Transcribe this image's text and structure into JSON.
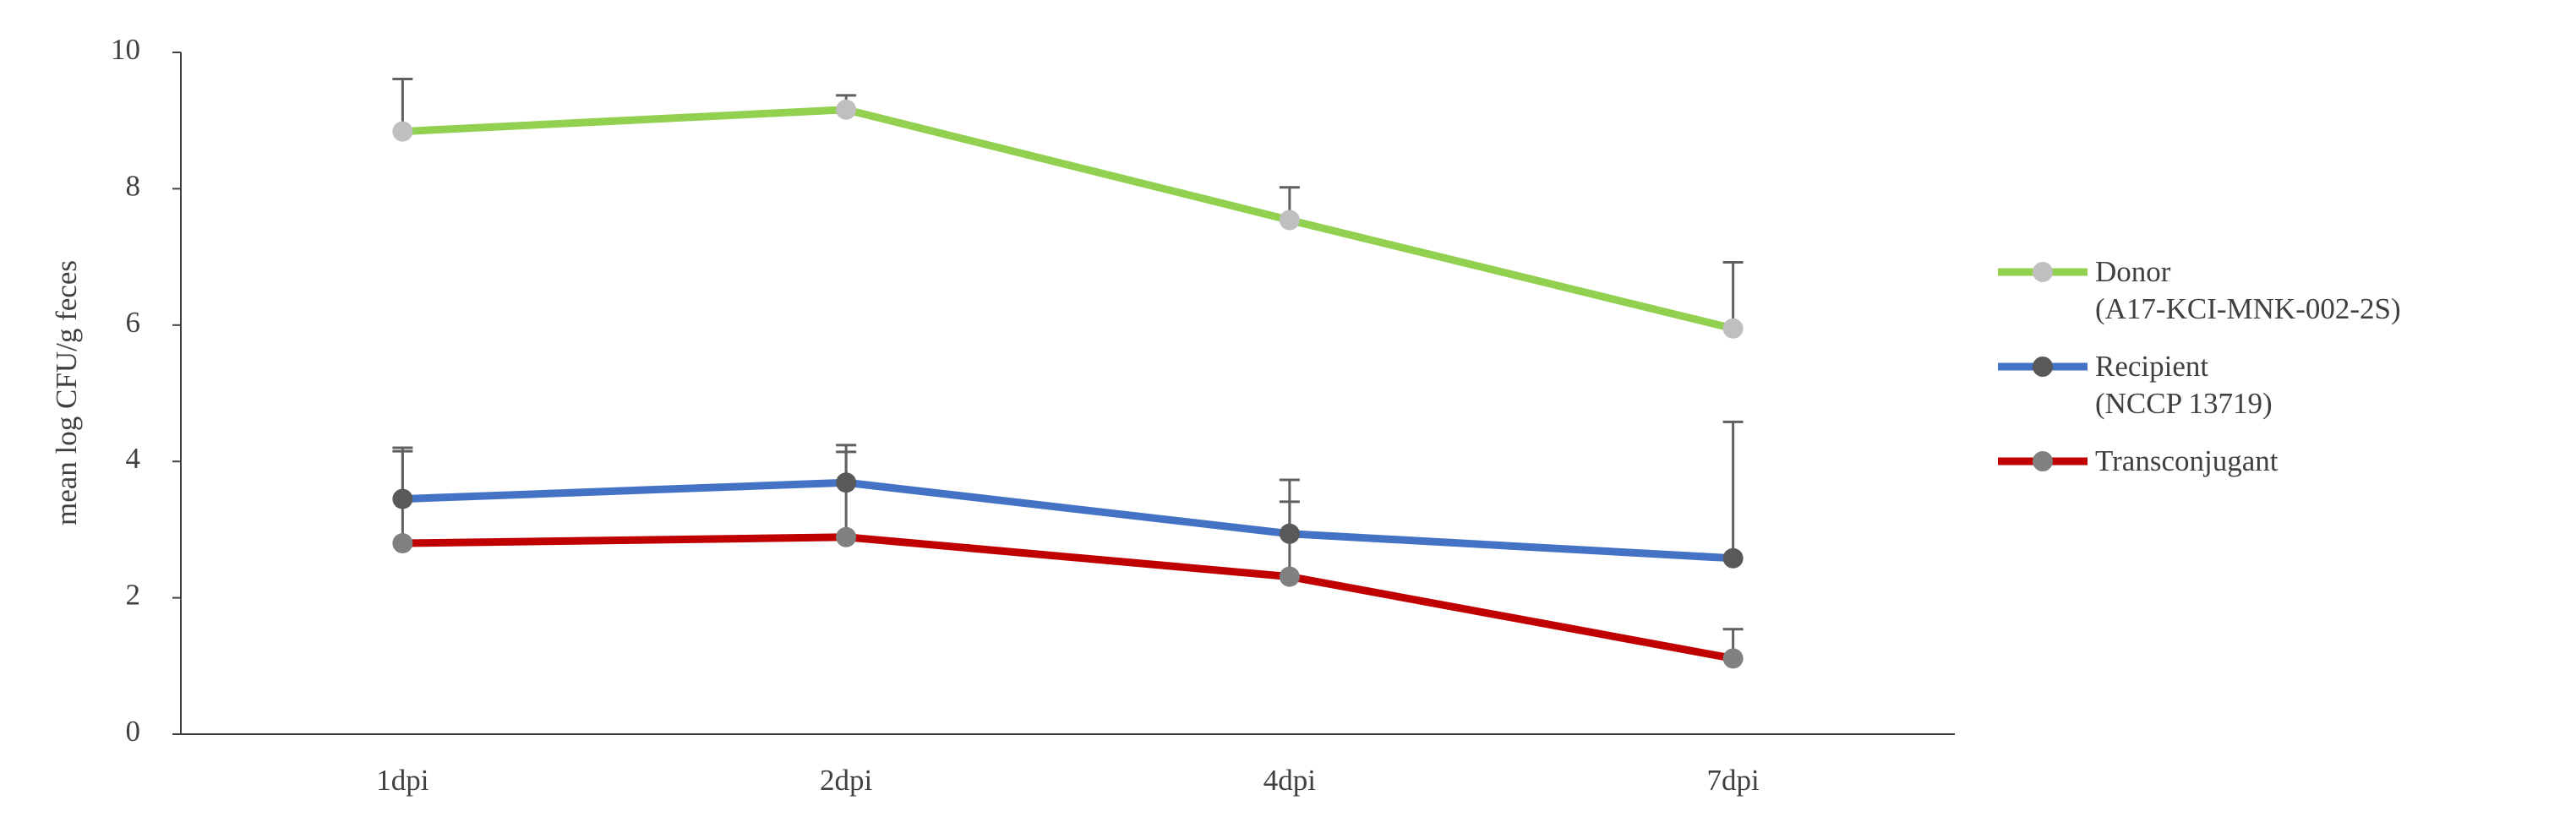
{
  "chart_data": {
    "type": "line",
    "y_label": "mean log CFU/g feces",
    "categories": [
      "1dpi",
      "2dpi",
      "4dpi",
      "7dpi"
    ],
    "series": [
      {
        "name": "Donor\n(A17-KCI-MNK-002-2S)",
        "color": "#92d050",
        "marker_color": "#bfbfbf",
        "values": [
          8.84,
          9.16,
          7.54,
          5.95
        ],
        "errors": [
          0.77,
          0.21,
          0.48,
          0.97
        ]
      },
      {
        "name": "Recipient\n(NCCP 13719)",
        "color": "#4472c4",
        "marker_color": "#595959",
        "values": [
          3.45,
          3.69,
          2.94,
          2.58
        ],
        "errors": [
          0.75,
          0.55,
          0.79,
          2.0
        ]
      },
      {
        "name": "Transconjugant",
        "color": "#c00000",
        "marker_color": "#808080",
        "values": [
          2.8,
          2.89,
          2.31,
          1.11
        ],
        "errors": [
          1.35,
          1.25,
          1.1,
          0.43
        ]
      }
    ],
    "ylim": [
      0,
      10
    ],
    "yticks": [
      0,
      2,
      4,
      6,
      8,
      10
    ],
    "grid": false,
    "legend": "right"
  }
}
